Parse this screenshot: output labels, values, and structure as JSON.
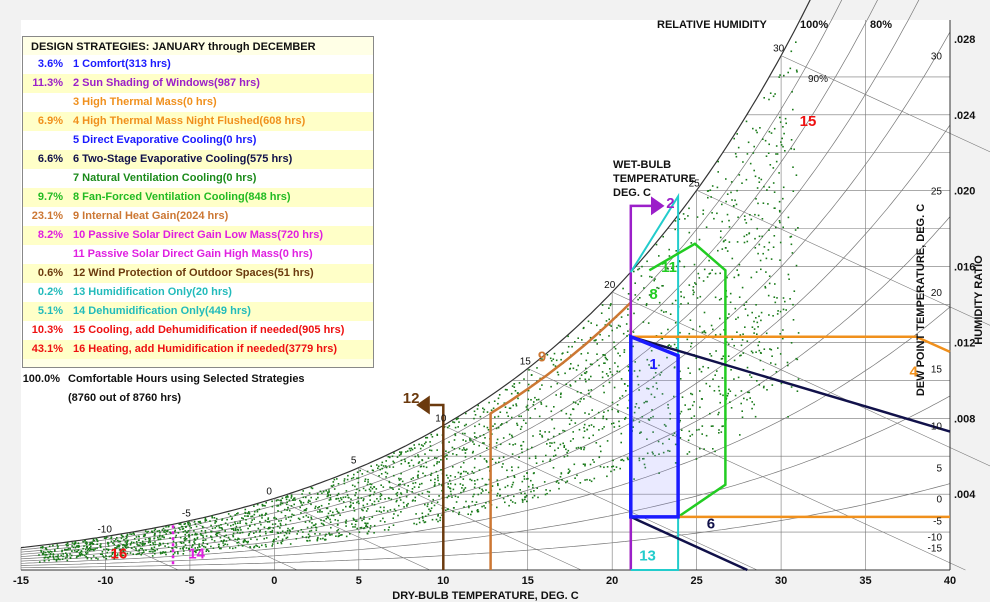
{
  "colors": {
    "comfort": "#1a1aff",
    "shading": "#9b1fc9",
    "thermal_mass": "#f0901c",
    "two_stage": "#11114a",
    "fan": "#22cc22",
    "internal_gain": "#cc7733",
    "passive_solar": "#e020e0",
    "wind": "#6b3a0e",
    "humid": "#22cccc",
    "cooling": "#ee1111",
    "points": "#1a7a1a"
  },
  "chart_data": {
    "type": "scatter",
    "title": "",
    "xlabel": "DRY-BULB TEMPERATURE, DEG. C",
    "ylabel_right": "HUMIDITY RATIO",
    "ylabel_dewpoint": "DEW POINT TEMPERATURE, DEG. C",
    "wetbulb_label": [
      "WET-BULB",
      "TEMPERATURE",
      "DEG. C"
    ],
    "rh_title": "RELATIVE HUMIDITY",
    "rh_top_labels": [
      "100%",
      "80%"
    ],
    "rh_inner_label": "90%",
    "xlim": [
      -15,
      40
    ],
    "ylim": [
      0,
      0.029
    ],
    "x_ticks": [
      "-15",
      "-10",
      "-5",
      "0",
      "5",
      "10",
      "15",
      "20",
      "25",
      "30",
      "35",
      "40"
    ],
    "y_ticks": [
      ".004",
      ".008",
      ".012",
      ".016",
      ".020",
      ".024",
      ".028"
    ],
    "dewpoint_ticks": [
      "-15",
      "-10",
      "-5",
      "0",
      "5",
      "10",
      "15",
      "20",
      "25",
      "30"
    ],
    "wetbulb_ticks": [
      "-10",
      "-5",
      "0",
      "5",
      "10",
      "15",
      "20",
      "25",
      "30"
    ],
    "zone_labels": [
      "1",
      "2",
      "4",
      "6",
      "8",
      "9",
      "11",
      "12",
      "13",
      "14",
      "15",
      "16"
    ],
    "point_count": 8760
  },
  "legend": {
    "title": "DESIGN STRATEGIES:  JANUARY through DECEMBER",
    "rows": [
      {
        "pct": "3.6%",
        "label": "1  Comfort(313 hrs)",
        "color": "#1a1aff"
      },
      {
        "pct": "11.3%",
        "label": "2  Sun Shading of Windows(987 hrs)",
        "color": "#9b1fc9"
      },
      {
        "pct": "",
        "label": "3  High Thermal Mass(0 hrs)",
        "color": "#f0901c"
      },
      {
        "pct": "6.9%",
        "label": "4  High Thermal Mass Night Flushed(608 hrs)",
        "color": "#f0901c"
      },
      {
        "pct": "",
        "label": "5  Direct Evaporative Cooling(0 hrs)",
        "color": "#1a1aff"
      },
      {
        "pct": "6.6%",
        "label": "6  Two-Stage Evaporative Cooling(575 hrs)",
        "color": "#11114a"
      },
      {
        "pct": "",
        "label": "7  Natural Ventilation Cooling(0 hrs)",
        "color": "#1a8a1a"
      },
      {
        "pct": "9.7%",
        "label": "8  Fan-Forced Ventilation Cooling(848 hrs)",
        "color": "#22bb22"
      },
      {
        "pct": "23.1%",
        "label": "9  Internal Heat Gain(2024 hrs)",
        "color": "#cc7733"
      },
      {
        "pct": "8.2%",
        "label": "10  Passive Solar Direct Gain Low Mass(720 hrs)",
        "color": "#e020e0"
      },
      {
        "pct": "",
        "label": "11  Passive Solar Direct Gain High Mass(0 hrs)",
        "color": "#e020e0"
      },
      {
        "pct": "0.6%",
        "label": "12  Wind Protection of Outdoor Spaces(51 hrs)",
        "color": "#6b3a0e"
      },
      {
        "pct": "0.2%",
        "label": "13  Humidification Only(20 hrs)",
        "color": "#22bbbb"
      },
      {
        "pct": "5.1%",
        "label": "14  Dehumidification Only(449 hrs)",
        "color": "#22bbbb"
      },
      {
        "pct": "10.3%",
        "label": "15  Cooling, add Dehumidification if needed(905 hrs)",
        "color": "#ee1111"
      },
      {
        "pct": "43.1%",
        "label": "16  Heating, add Humidification if needed(3779 hrs)",
        "color": "#ee1111"
      }
    ],
    "summary_pct": "100.0%",
    "summary_label": "Comfortable Hours using Selected Strategies",
    "summary_sub": "(8760 out of 8760 hrs)"
  }
}
